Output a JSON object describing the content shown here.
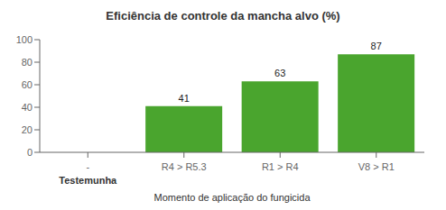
{
  "chart_data": {
    "type": "bar",
    "title": "Eficiência de controle da mancha alvo (%)",
    "categories": [
      "-",
      "R4 > R5.3",
      "R1 > R4",
      "V8 > R1"
    ],
    "values": [
      0,
      41,
      63,
      87
    ],
    "color": "#4aa52e",
    "ylim": [
      0,
      100
    ],
    "yticks": [
      0,
      20,
      40,
      60,
      80,
      100
    ],
    "xlabel": "Momento de aplicação do fungicida",
    "annotations": [
      {
        "text": "Testemunha",
        "category": "-"
      }
    ],
    "data_labels": true,
    "grid": false
  }
}
